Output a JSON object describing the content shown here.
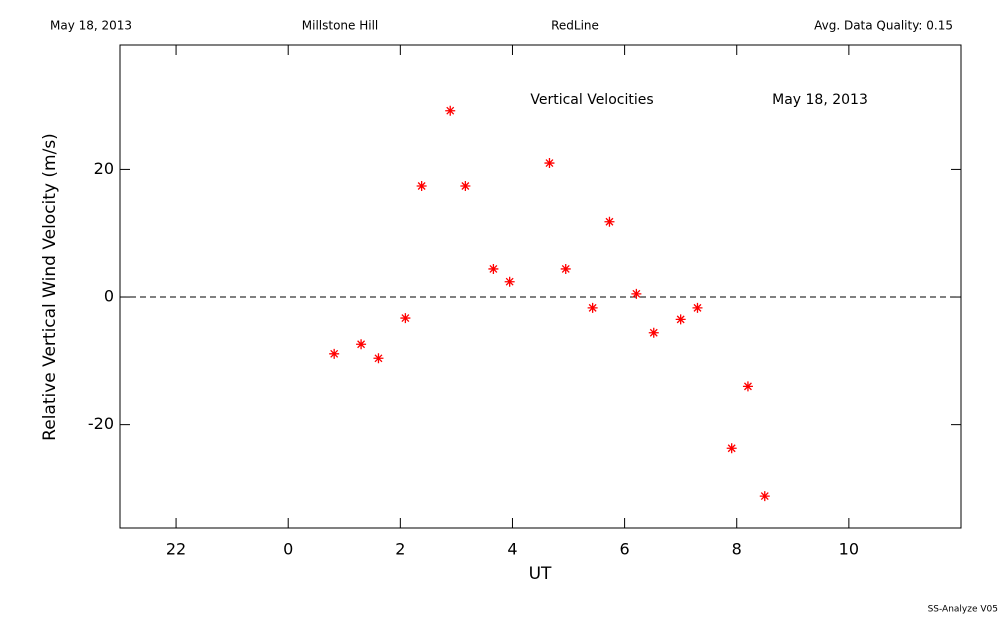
{
  "header": {
    "date": "May 18, 2013",
    "site": "Millstone Hill",
    "line": "RedLine",
    "quality": "Avg. Data Quality: 0.15"
  },
  "chart_data": {
    "type": "scatter",
    "title": "Vertical Velocities",
    "subtitle": "May 18, 2013",
    "x_label": "UT",
    "y_label": "Relative Vertical Wind Velocity (m/s)",
    "color": "#ff0000",
    "marker": "asterisk",
    "x": [
      0.82,
      1.3,
      1.61,
      2.09,
      2.38,
      2.89,
      3.16,
      3.66,
      3.95,
      4.66,
      4.95,
      5.43,
      5.73,
      6.21,
      6.52,
      7.0,
      7.3,
      7.91,
      8.2,
      8.5
    ],
    "values": [
      -8.9,
      -7.4,
      -9.6,
      -3.3,
      17.4,
      29.2,
      17.4,
      4.4,
      2.4,
      21.0,
      4.4,
      -1.7,
      11.8,
      0.5,
      -5.6,
      -3.5,
      -1.7,
      -23.7,
      -14.0,
      -31.2
    ],
    "xlim": [
      -3,
      12
    ],
    "xticks": [
      {
        "value": -2,
        "label": "22"
      },
      0,
      2,
      4,
      6,
      8,
      10
    ],
    "ylim": [
      -36.2,
      39.5
    ],
    "yticks": [
      -20,
      0,
      20
    ],
    "hline": 0
  },
  "footer": "SS-Analyze V05"
}
